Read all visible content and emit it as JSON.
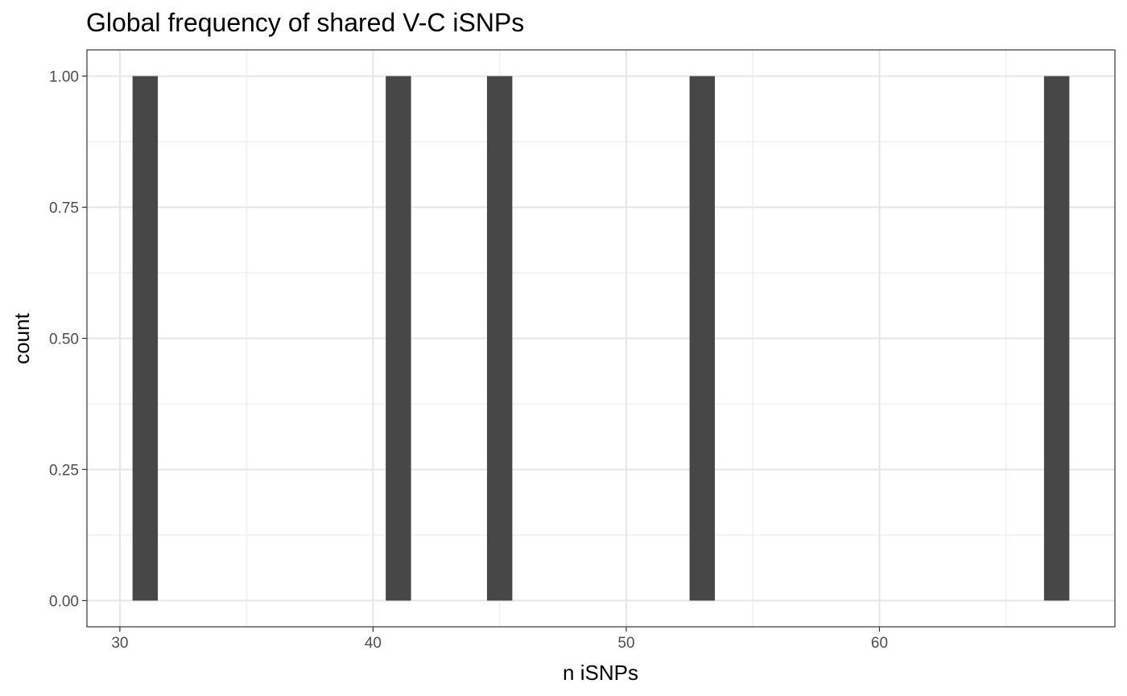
{
  "chart_data": {
    "type": "bar",
    "title": "Global frequency of shared V-C iSNPs",
    "xlabel": "n iSNPs",
    "ylabel": "count",
    "x_ticks": [
      30,
      40,
      50,
      60
    ],
    "x_tick_labels": [
      "30",
      "40",
      "50",
      "60"
    ],
    "y_ticks": [
      0,
      0.25,
      0.5,
      0.75,
      1
    ],
    "y_tick_labels": [
      "0.00",
      "0.25",
      "0.50",
      "0.75",
      "1.00"
    ],
    "xlim": [
      28.7,
      69.3
    ],
    "ylim": [
      -0.05,
      1.05
    ],
    "grid": true,
    "bins": [
      {
        "x": 31,
        "count": 1
      },
      {
        "x": 41,
        "count": 1
      },
      {
        "x": 45,
        "count": 1
      },
      {
        "x": 53,
        "count": 1
      },
      {
        "x": 67,
        "count": 1
      }
    ],
    "bar_color": "#474747"
  }
}
